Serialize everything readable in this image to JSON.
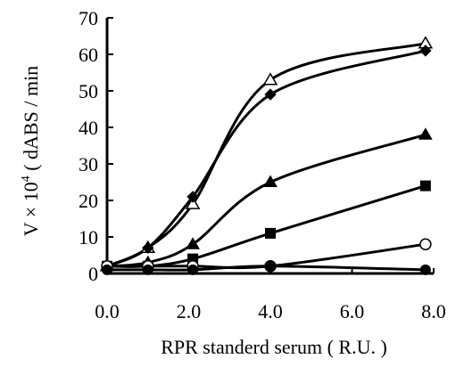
{
  "chart_data": {
    "type": "line",
    "title": "",
    "xlabel": "RPR standerd serum ( R.U. )",
    "ylabel": {
      "prefix": "V × 10",
      "superscript": "4",
      "suffix": " ( dABS / min"
    },
    "xlim": [
      0,
      8
    ],
    "ylim": [
      0,
      70
    ],
    "x_ticks": [
      "0.0",
      "2.0",
      "4.0",
      "6.0",
      "8.0"
    ],
    "y_ticks": [
      "0",
      "10",
      "20",
      "30",
      "40",
      "50",
      "60",
      "70"
    ],
    "grid": false,
    "legend": "none",
    "series": [
      {
        "marker": "triangle-open",
        "x": [
          0,
          1,
          2.1,
          4,
          7.8
        ],
        "y": [
          2,
          7,
          19,
          53,
          63
        ]
      },
      {
        "marker": "diamond-filled",
        "x": [
          0,
          1,
          2.1,
          4,
          7.8
        ],
        "y": [
          2,
          7,
          21,
          49,
          61
        ]
      },
      {
        "marker": "triangle-filled",
        "x": [
          0,
          1,
          2.1,
          4,
          7.8
        ],
        "y": [
          2,
          3,
          8,
          25,
          38
        ]
      },
      {
        "marker": "square-filled",
        "x": [
          0,
          1,
          2.1,
          4,
          7.8
        ],
        "y": [
          2,
          2,
          4,
          11,
          24
        ]
      },
      {
        "marker": "circle-open",
        "x": [
          0,
          1,
          2.1,
          4,
          7.8
        ],
        "y": [
          2,
          2,
          2,
          2,
          8
        ]
      },
      {
        "marker": "circle-filled",
        "x": [
          0,
          1,
          2.1,
          4,
          7.8
        ],
        "y": [
          1,
          1,
          1,
          2,
          1
        ]
      }
    ]
  }
}
